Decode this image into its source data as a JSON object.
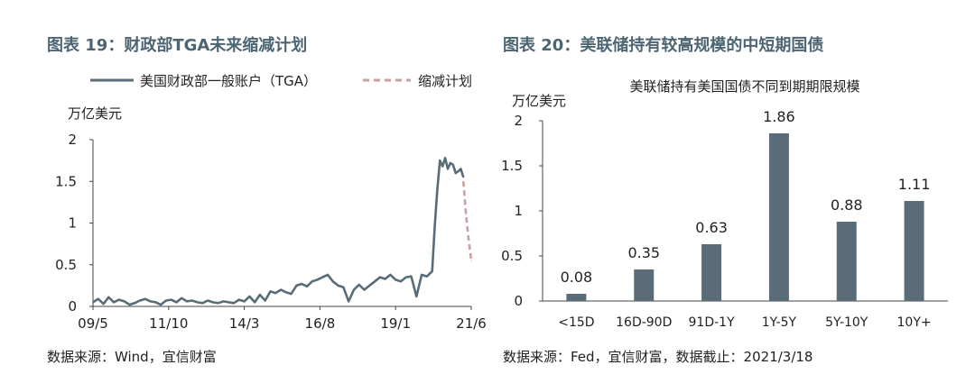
{
  "left": {
    "fig_title": "图表 19：财政部TGA未来缩减计划",
    "source": "数据来源：Wind，宜信财富"
  },
  "right": {
    "fig_title": "图表 20：美联储持有较高规模的中短期国债",
    "source": "数据来源：Fed，宜信财富，数据截止：2021/3/18"
  },
  "colors": {
    "series": "#596c78",
    "plan": "#c9a0a0",
    "title": "#4d6573"
  },
  "chart_data": [
    {
      "type": "line",
      "ylabel": "万亿美元",
      "ylim": [
        0,
        2
      ],
      "y_ticks": [
        "0",
        "0.5",
        "1",
        "1.5",
        "2"
      ],
      "x_ticks": [
        "09/5",
        "11/10",
        "14/3",
        "16/8",
        "19/1",
        "21/6"
      ],
      "legend": "top",
      "series": [
        {
          "name": "美国财政部一般账户（TGA）",
          "x": [
            "2009-05",
            "2009-07",
            "2009-09",
            "2009-11",
            "2010-01",
            "2010-03",
            "2010-05",
            "2010-07",
            "2010-09",
            "2010-11",
            "2011-01",
            "2011-03",
            "2011-05",
            "2011-07",
            "2011-09",
            "2011-11",
            "2012-01",
            "2012-03",
            "2012-05",
            "2012-07",
            "2012-09",
            "2012-11",
            "2013-01",
            "2013-03",
            "2013-05",
            "2013-07",
            "2013-09",
            "2013-11",
            "2014-01",
            "2014-03",
            "2014-05",
            "2014-07",
            "2014-09",
            "2014-11",
            "2015-01",
            "2015-03",
            "2015-05",
            "2015-07",
            "2015-09",
            "2015-11",
            "2016-01",
            "2016-03",
            "2016-05",
            "2016-07",
            "2016-09",
            "2016-11",
            "2017-01",
            "2017-03",
            "2017-05",
            "2017-07",
            "2017-09",
            "2017-11",
            "2018-01",
            "2018-03",
            "2018-05",
            "2018-07",
            "2018-09",
            "2018-11",
            "2019-01",
            "2019-03",
            "2019-05",
            "2019-07",
            "2019-09",
            "2019-11",
            "2020-01",
            "2020-03",
            "2020-04",
            "2020-05",
            "2020-06",
            "2020-07",
            "2020-08",
            "2020-09",
            "2020-10",
            "2020-11",
            "2020-12",
            "2021-01",
            "2021-02",
            "2021-03"
          ],
          "values": [
            0.05,
            0.09,
            0.03,
            0.11,
            0.05,
            0.08,
            0.06,
            0.02,
            0.04,
            0.07,
            0.09,
            0.06,
            0.05,
            0.02,
            0.07,
            0.08,
            0.05,
            0.1,
            0.06,
            0.07,
            0.05,
            0.04,
            0.07,
            0.05,
            0.04,
            0.06,
            0.05,
            0.04,
            0.08,
            0.06,
            0.12,
            0.05,
            0.14,
            0.07,
            0.18,
            0.16,
            0.2,
            0.17,
            0.15,
            0.25,
            0.27,
            0.24,
            0.3,
            0.32,
            0.35,
            0.38,
            0.3,
            0.25,
            0.23,
            0.06,
            0.2,
            0.26,
            0.2,
            0.25,
            0.3,
            0.35,
            0.33,
            0.38,
            0.32,
            0.3,
            0.35,
            0.36,
            0.12,
            0.38,
            0.36,
            0.42,
            0.95,
            1.4,
            1.75,
            1.68,
            1.78,
            1.65,
            1.72,
            1.7,
            1.6,
            1.62,
            1.65,
            1.55
          ]
        },
        {
          "name": "缩减计划",
          "x": [
            "2021-03",
            "2021-04",
            "2021-05",
            "2021-06"
          ],
          "values": [
            1.5,
            1.1,
            0.8,
            0.55
          ]
        }
      ]
    },
    {
      "type": "bar",
      "title": "美联储持有美国国债不同到期期限规模",
      "ylabel": "万亿美元",
      "ylim": [
        0,
        2
      ],
      "y_ticks": [
        "0",
        "0.5",
        "1",
        "1.5",
        "2"
      ],
      "categories": [
        "<15D",
        "16D-90D",
        "91D-1Y",
        "1Y-5Y",
        "5Y-10Y",
        "10Y+"
      ],
      "values": [
        0.08,
        0.35,
        0.63,
        1.86,
        0.88,
        1.11
      ],
      "value_labels": [
        "0.08",
        "0.35",
        "0.63",
        "1.86",
        "0.88",
        "1.11"
      ]
    }
  ]
}
